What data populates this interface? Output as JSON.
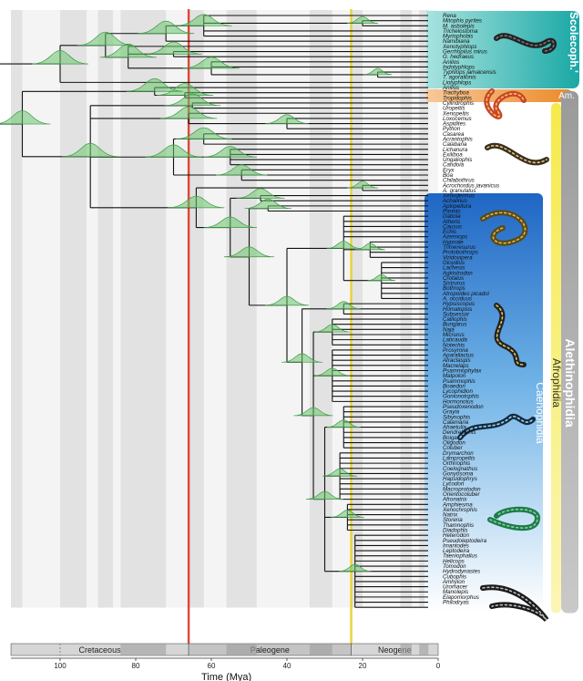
{
  "figure": {
    "axis": {
      "title": "Time (Mya)",
      "ticks": [
        {
          "value": 100,
          "label": "100"
        },
        {
          "value": 80,
          "label": "80"
        },
        {
          "value": 60,
          "label": "60"
        },
        {
          "value": 40,
          "label": "40"
        },
        {
          "value": 20,
          "label": "20"
        },
        {
          "value": 0,
          "label": "0"
        }
      ],
      "range": [
        113,
        0
      ]
    },
    "periods": [
      {
        "name": "Cretaceous",
        "start": 113,
        "end": 66
      },
      {
        "name": "Paleogene",
        "start": 66,
        "end": 23
      },
      {
        "name": "Neogene",
        "start": 23,
        "end": 0
      }
    ],
    "events": [
      {
        "name": "K-Pg boundary",
        "age": 66,
        "color": "#e0453a"
      },
      {
        "name": "Paleogene-Neogene boundary",
        "age": 23,
        "color": "#e8d23a"
      }
    ],
    "taxa": [
      "Rena",
      "Mitophis pyrites",
      "M. asbolepis",
      "Trichelostoma",
      "Myriophobis",
      "Namibiana",
      "Xenotyphlops",
      "Gerrhopilus mirus",
      "G. hedraeus",
      "Anilios",
      "Indotyphlops",
      "Typhlops jamaicensis",
      "T. agoralionis",
      "Liotyphlops",
      "Anilius",
      "Trachyboa",
      "Tropidophis",
      "Cylindrophis",
      "Uropeltis",
      "Xenopeltis",
      "Loxocemus",
      "Aspidites",
      "Python",
      "Casarea",
      "Acrantophis",
      "Calabaria",
      "Lichanura",
      "Exiliboa",
      "Ungaliophis",
      "Candoia",
      "Eryx",
      "Boa",
      "Chilabothrus",
      "Acrochordus javanicus",
      "A. granulatus",
      "Xenodermus",
      "Achalinus",
      "Aplopeltura",
      "Pareas",
      "Daboia",
      "Atheris",
      "Causus",
      "Echis",
      "Azemiops",
      "Hypnale",
      "Trimeresurus",
      "Protobothrops",
      "Viridovipera",
      "Gloydius",
      "Lachesis",
      "Agkistrodon",
      "Crotalus",
      "Sistrurus",
      "Bothrops",
      "Atropoides picadoi",
      "A. occiduus",
      "Hypsiscopus",
      "Homalopsis",
      "Subsessor",
      "Calliophis",
      "Bungarus",
      "Naja",
      "Micrurus",
      "Laticauda",
      "Notechis",
      "Prosymna",
      "Aparallactus",
      "Atractaspis",
      "Macrelaps",
      "Psammophylax",
      "Malpolon",
      "Psammophis",
      "Boaedon",
      "Lycophidion",
      "Gonionotophis",
      "Hormonotus",
      "Pseudoxenodon",
      "Grayia",
      "Sibynophis",
      "Calamaria",
      "Ahaetulla",
      "Dendrelaphis",
      "Boiga",
      "Oligodon",
      "Coluber",
      "Drymarchon",
      "Lampropeltis",
      "Orthriophis",
      "Coelognathus",
      "Gonyosoma",
      "Hapsidophrys",
      "Lycodon",
      "Macroprotodon",
      "Orientocoluber",
      "Afronatrix",
      "Amphiesma",
      "Xenochrophis",
      "Natrix",
      "Storeria",
      "Thamnophis",
      "Diadophis",
      "Heterodon",
      "Pseudoleptodeira",
      "Imantodes",
      "Leptodeira",
      "Taeniophallus",
      "Helicops",
      "Tomodon",
      "Hydrodynastes",
      "Cubophis",
      "Amhyion",
      "Uromacer",
      "Manolepis",
      "Elapomorphus",
      "Philodryas"
    ],
    "clade_bars": [
      {
        "label": "'Scolecoph.'",
        "color": "#26b3b0"
      },
      {
        "label": "Am.",
        "color": "#ee8d2b"
      },
      {
        "label": "Alethinophidia",
        "color": "#8d8d8d"
      },
      {
        "label": "Afrophidia",
        "color": "#f2e437"
      },
      {
        "label": "Caenophidia",
        "color": "#1f6fc7"
      }
    ],
    "snake_images": [
      "blind-snake",
      "coral-snake",
      "python",
      "viper",
      "rattlesnake",
      "sea-snake",
      "green-snake",
      "black-snake"
    ]
  }
}
